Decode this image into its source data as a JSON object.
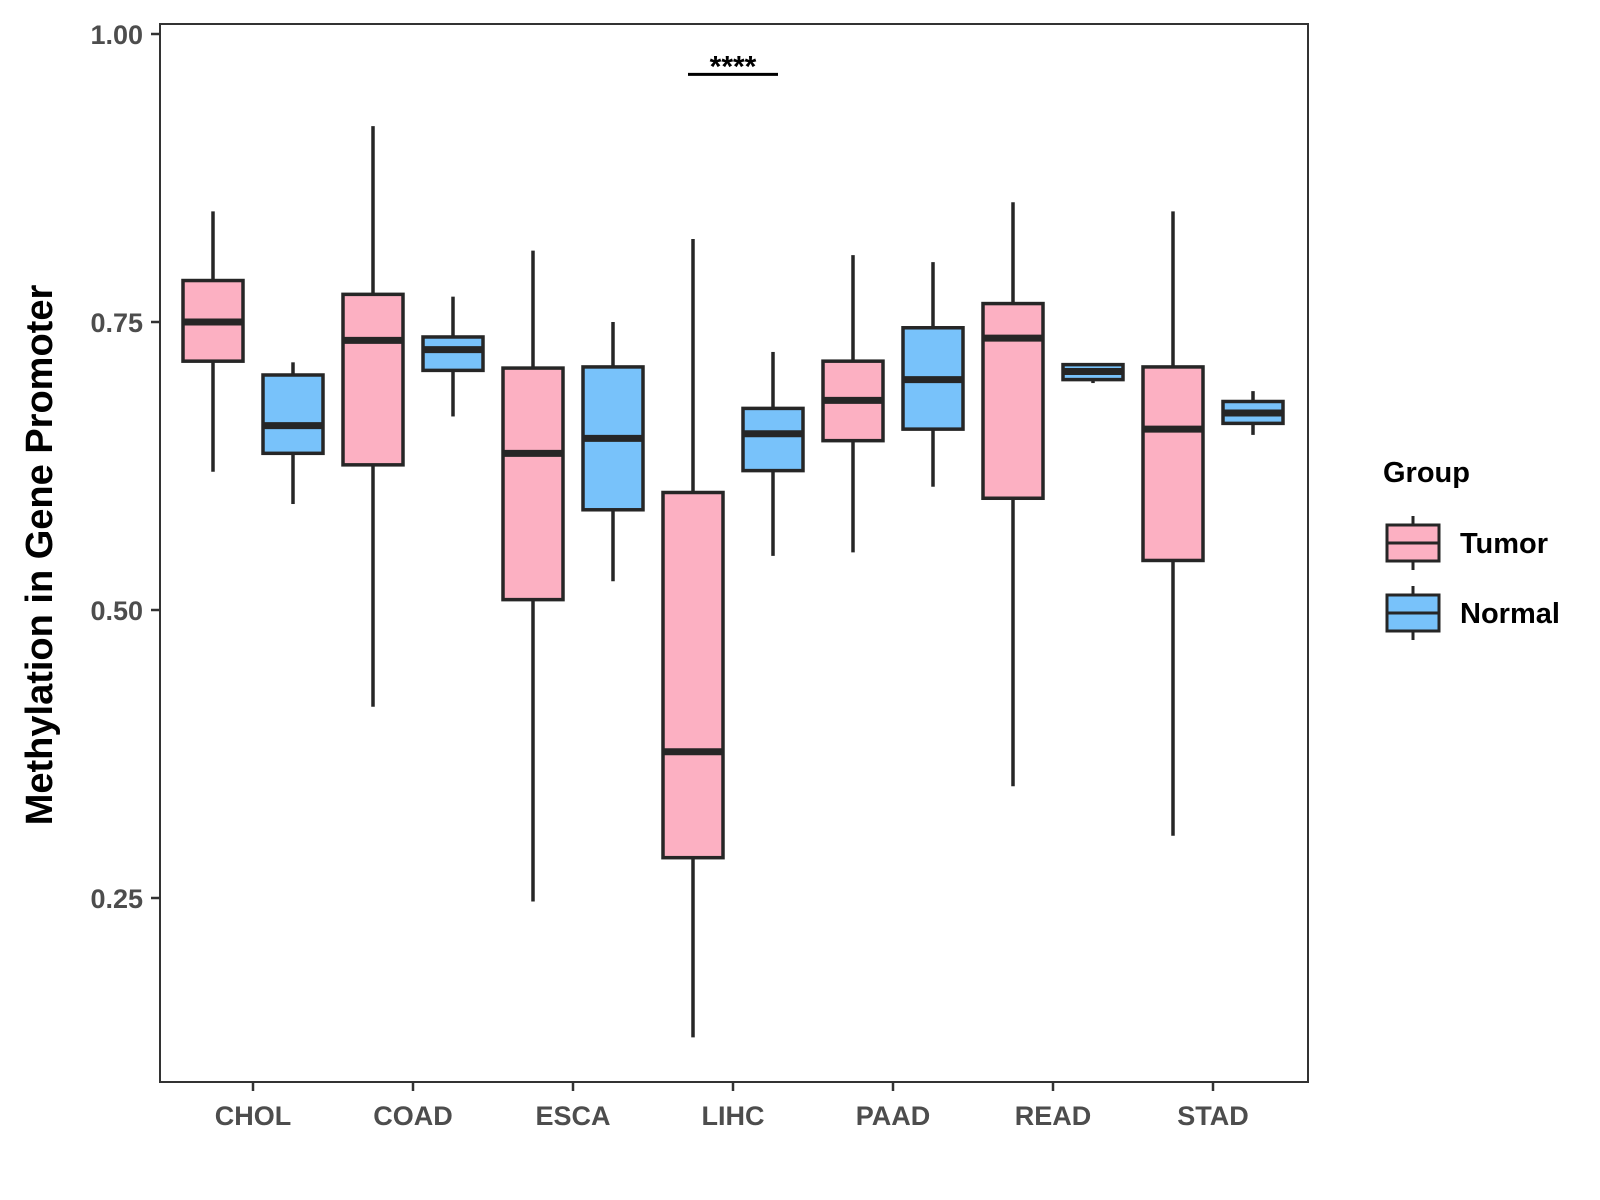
{
  "chart_data": {
    "type": "boxplot",
    "title": "",
    "xlabel": "",
    "ylabel": "Methylation in Gene Promoter",
    "ylim": [
      0.09,
      1.01
    ],
    "yticks": [
      0.25,
      0.5,
      0.75,
      1.0
    ],
    "ytick_labels": [
      "0.25",
      "0.50",
      "0.75",
      "1.00"
    ],
    "categories": [
      "CHOL",
      "COAD",
      "ESCA",
      "LIHC",
      "PAAD",
      "READ",
      "STAD"
    ],
    "legend": {
      "title": "Group",
      "position": "right",
      "entries": [
        "Tumor",
        "Normal"
      ]
    },
    "series": [
      {
        "name": "Tumor",
        "color": "#fcb0c2",
        "boxes": [
          {
            "min": 0.62,
            "q1": 0.716,
            "median": 0.75,
            "q3": 0.786,
            "max": 0.846
          },
          {
            "min": 0.416,
            "q1": 0.626,
            "median": 0.734,
            "q3": 0.774,
            "max": 0.92
          },
          {
            "min": 0.247,
            "q1": 0.509,
            "median": 0.636,
            "q3": 0.71,
            "max": 0.812
          },
          {
            "min": 0.129,
            "q1": 0.285,
            "median": 0.377,
            "q3": 0.602,
            "max": 0.822
          },
          {
            "min": 0.55,
            "q1": 0.647,
            "median": 0.682,
            "q3": 0.716,
            "max": 0.808
          },
          {
            "min": 0.347,
            "q1": 0.597,
            "median": 0.736,
            "q3": 0.766,
            "max": 0.854
          },
          {
            "min": 0.304,
            "q1": 0.543,
            "median": 0.657,
            "q3": 0.711,
            "max": 0.846
          }
        ]
      },
      {
        "name": "Normal",
        "color": "#78c2fa",
        "boxes": [
          {
            "min": 0.592,
            "q1": 0.636,
            "median": 0.66,
            "q3": 0.704,
            "max": 0.715
          },
          {
            "min": 0.668,
            "q1": 0.708,
            "median": 0.726,
            "q3": 0.737,
            "max": 0.772
          },
          {
            "min": 0.525,
            "q1": 0.587,
            "median": 0.649,
            "q3": 0.711,
            "max": 0.75
          },
          {
            "min": 0.547,
            "q1": 0.621,
            "median": 0.653,
            "q3": 0.675,
            "max": 0.724
          },
          {
            "min": 0.607,
            "q1": 0.657,
            "median": 0.7,
            "q3": 0.745,
            "max": 0.802
          },
          {
            "min": 0.697,
            "q1": 0.7,
            "median": 0.707,
            "q3": 0.713,
            "max": 0.713
          },
          {
            "min": 0.652,
            "q1": 0.662,
            "median": 0.671,
            "q3": 0.681,
            "max": 0.69
          }
        ]
      }
    ],
    "annotations": [
      {
        "category": "LIHC",
        "text": "****",
        "y": 0.965
      }
    ]
  }
}
